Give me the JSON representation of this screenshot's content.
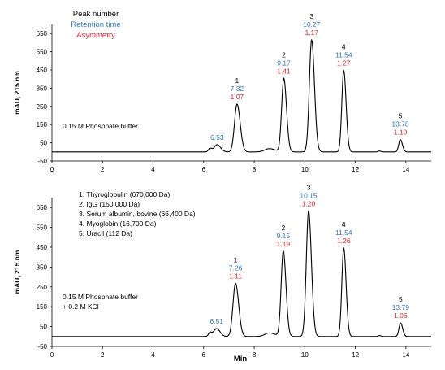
{
  "legend_header": {
    "line1": "Peak number",
    "line2": "Retention time",
    "line3": "Asymmetry"
  },
  "colors": {
    "peak_number": "#000000",
    "retention_time": "#2f78c4",
    "asymmetry": "#e3242b",
    "trace": "#000000"
  },
  "peak_list": [
    "1.  Thyroglobulin (670,000 Da)",
    "2.  IgG (150,000 Da)",
    "3.  Serum albumin, bovine (66,400 Da)",
    "4.  Myoglobin (16,700 Da)",
    "5.  Uracil (112 Da)"
  ],
  "chart_data": [
    {
      "type": "line",
      "ylabel": "mAU, 215 nm",
      "xlabel": "",
      "xlim": [
        0,
        15
      ],
      "ylim": [
        -50,
        700
      ],
      "x_ticks": [
        "0",
        "2",
        "4",
        "6",
        "8",
        "10",
        "12",
        "14"
      ],
      "y_ticks": [
        "650",
        "550",
        "450",
        "350",
        "250",
        "150",
        "50",
        "-50"
      ],
      "condition": [
        "0.15 M Phosphate buffer"
      ],
      "impurity_peak": {
        "retention_time": "6.53",
        "height": 40
      },
      "peaks": [
        {
          "number": "1",
          "retention_time": "7.32",
          "asymmetry": "1.07",
          "height": 262
        },
        {
          "number": "2",
          "retention_time": "9.17",
          "asymmetry": "1.41",
          "height": 404
        },
        {
          "number": "3",
          "retention_time": "10.27",
          "asymmetry": "1.17",
          "height": 615
        },
        {
          "number": "4",
          "retention_time": "11.54",
          "asymmetry": "1.27",
          "height": 447
        },
        {
          "number": "5",
          "retention_time": "13.78",
          "asymmetry": "1.10",
          "height": 68
        }
      ]
    },
    {
      "type": "line",
      "ylabel": "mAU, 215 nm",
      "xlabel": "Min",
      "xlim": [
        0,
        15
      ],
      "ylim": [
        -50,
        700
      ],
      "x_ticks": [
        "0",
        "2",
        "4",
        "6",
        "8",
        "10",
        "12",
        "14"
      ],
      "y_ticks": [
        "650",
        "550",
        "450",
        "350",
        "250",
        "150",
        "50",
        "-50"
      ],
      "condition": [
        "0.15 M Phosphate buffer",
        "+ 0.2 M KCl"
      ],
      "impurity_peak": {
        "retention_time": "6.51",
        "height": 40
      },
      "peaks": [
        {
          "number": "1",
          "retention_time": "7.26",
          "asymmetry": "1.11",
          "height": 268
        },
        {
          "number": "2",
          "retention_time": "9.15",
          "asymmetry": "1.19",
          "height": 430
        },
        {
          "number": "3",
          "retention_time": "10.15",
          "asymmetry": "1.20",
          "height": 632
        },
        {
          "number": "4",
          "retention_time": "11.54",
          "asymmetry": "1.26",
          "height": 445
        },
        {
          "number": "5",
          "retention_time": "13.79",
          "asymmetry": "1.06",
          "height": 68
        }
      ]
    }
  ]
}
